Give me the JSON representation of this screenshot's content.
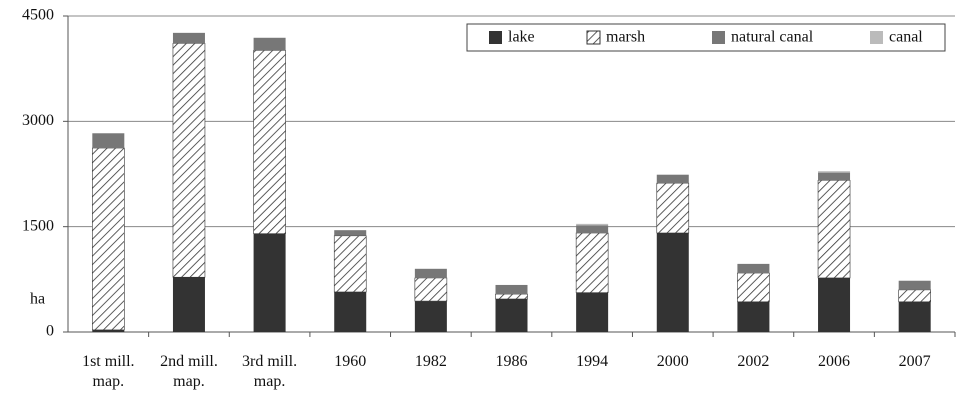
{
  "chart_data": {
    "type": "stacked_bar",
    "y_label": "ha",
    "categories": [
      "1st mill. map.",
      "2nd mill. map.",
      "3rd mill. map.",
      "1960",
      "1982",
      "1986",
      "1994",
      "2000",
      "2002",
      "2006",
      "2007"
    ],
    "series": [
      {
        "name": "lake",
        "color": "#333333",
        "hatch": false,
        "values": [
          30,
          780,
          1400,
          570,
          440,
          470,
          560,
          1410,
          430,
          770,
          430
        ]
      },
      {
        "name": "marsh",
        "color": "#333333",
        "hatch": true,
        "values": [
          2590,
          3330,
          2610,
          800,
          330,
          70,
          850,
          710,
          410,
          1390,
          170
        ]
      },
      {
        "name": "natural canal",
        "color": "#777777",
        "hatch": false,
        "values": [
          210,
          150,
          180,
          80,
          130,
          130,
          110,
          120,
          130,
          110,
          130
        ]
      },
      {
        "name": "canal",
        "color": "#bbbbbb",
        "hatch": false,
        "values": [
          0,
          0,
          0,
          0,
          0,
          0,
          20,
          0,
          0,
          20,
          0
        ]
      }
    ],
    "ylim": [
      0,
      4500
    ],
    "yticks": [
      0,
      1500,
      3000,
      4500
    ],
    "grid": true
  }
}
